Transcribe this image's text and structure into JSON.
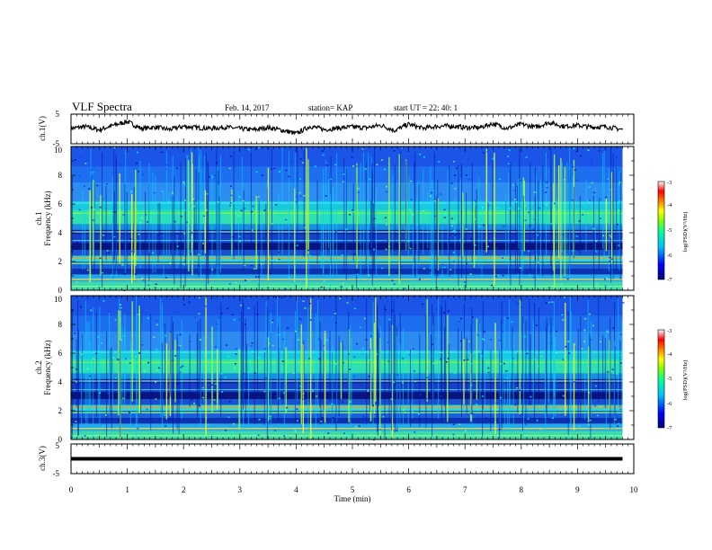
{
  "header": {
    "title": "VLF Spectra",
    "date": "Feb. 14, 2017",
    "station": "station= KAP",
    "start_ut": "start  UT =   22: 40: 1"
  },
  "chart_data": [
    {
      "type": "line",
      "panel": "ch1-waveform",
      "ylabel": "ch.1(V)",
      "ylim": [
        -5,
        5
      ],
      "yticks": [
        "5",
        "-5"
      ],
      "xlim": [
        0,
        10
      ],
      "description_values": "voltage trace fluctuating roughly between -2 and 3 V",
      "x": [
        0,
        0.25,
        0.5,
        0.75,
        1,
        1.25,
        1.5,
        1.75,
        2,
        2.25,
        2.5,
        2.75,
        3,
        3.25,
        3.5,
        3.75,
        4,
        4.25,
        4.5,
        4.75,
        5,
        5.25,
        5.5,
        5.75,
        6,
        6.25,
        6.5,
        6.75,
        7,
        7.25,
        7.5,
        7.75,
        8,
        8.25,
        8.5,
        8.75,
        9,
        9.25,
        9.5,
        9.8
      ],
      "y": [
        0.2,
        0.8,
        -0.3,
        1.2,
        2.5,
        0.1,
        0.6,
        -0.2,
        0.9,
        0.4,
        0.2,
        0.6,
        0.1,
        -0.3,
        0.5,
        -0.4,
        -1.6,
        0.9,
        -0.2,
        0.3,
        0.7,
        0.4,
        1.3,
        -0.5,
        1.6,
        0.2,
        0.9,
        1.0,
        0.5,
        0.4,
        1.8,
        0.2,
        1.6,
        0.6,
        2.2,
        0.9,
        1.2,
        0.6,
        0.8,
        -0.2
      ]
    },
    {
      "type": "heatmap",
      "panel": "ch1-spectrogram",
      "ylabel": "ch.1 Frequency (kHz)",
      "ylim": [
        0,
        10
      ],
      "yticks": [
        "0",
        "2",
        "4",
        "6",
        "8",
        "10"
      ],
      "xlim": [
        0,
        10
      ],
      "colorbar": {
        "label": "log(PSD)(V²/Hz)",
        "range": [
          -7,
          -3
        ],
        "ticks": [
          "-3",
          "-4",
          "-5",
          "-6",
          "-7"
        ]
      }
    },
    {
      "type": "heatmap",
      "panel": "ch2-spectrogram",
      "ylabel": "ch.2 Frequency (kHz)",
      "ylim": [
        0,
        10
      ],
      "yticks": [
        "0",
        "2",
        "4",
        "6",
        "8",
        "10"
      ],
      "xlim": [
        0,
        10
      ],
      "colorbar": {
        "label": "log(PSD)(V²/Hz)",
        "range": [
          -7,
          -3
        ],
        "ticks": [
          "-3",
          "-4",
          "-5",
          "-6",
          "-7"
        ]
      }
    },
    {
      "type": "line",
      "panel": "ch3-waveform",
      "ylabel": "ch.3(V)",
      "ylim": [
        -5,
        5
      ],
      "yticks": [
        "5",
        "-5"
      ],
      "xlim": [
        0,
        10
      ],
      "x": [
        0,
        9.8
      ],
      "y": [
        0,
        0
      ]
    }
  ],
  "xaxis": {
    "label": "Time (min)",
    "ticks": [
      "0",
      "1",
      "2",
      "3",
      "4",
      "5",
      "6",
      "7",
      "8",
      "9",
      "10"
    ]
  },
  "colors": {
    "line": "#000000",
    "colormap": [
      "#00007f",
      "#0000ff",
      "#007fff",
      "#00ffff",
      "#7fff7f",
      "#ffff00",
      "#ff7f00",
      "#ff0000",
      "#ffffff"
    ]
  }
}
